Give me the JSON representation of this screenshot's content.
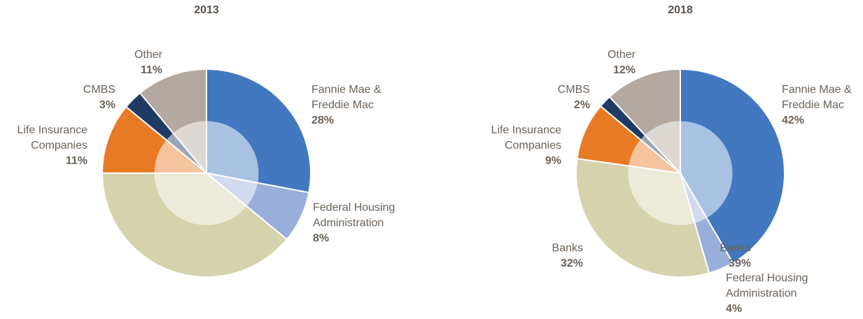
{
  "chart_data": [
    {
      "type": "pie",
      "title": "2013",
      "categories": [
        "Fannie Mae & Freddie Mac",
        "Federal Housing Administration",
        "Banks",
        "Life Insurance Companies",
        "CMBS",
        "Other"
      ],
      "values": [
        28,
        8,
        39,
        11,
        3,
        11
      ],
      "value_labels": [
        "28%",
        "8%",
        "39%",
        "11%",
        "3%",
        "11%"
      ],
      "colors": [
        "#4278bf",
        "#9aaedc",
        "#d4d3ac",
        "#e97a25",
        "#1f3b63",
        "#b3a9a0"
      ]
    },
    {
      "type": "pie",
      "title": "2018",
      "categories": [
        "Fannie Mae & Freddie Mac",
        "Federal Housing Administration",
        "Banks",
        "Life Insurance Companies",
        "CMBS",
        "Other"
      ],
      "values": [
        42,
        4,
        32,
        9,
        2,
        12
      ],
      "value_labels": [
        "42%",
        "4%",
        "32%",
        "9%",
        "2%",
        "12%"
      ],
      "colors": [
        "#4278bf",
        "#9aaedc",
        "#d4d3ac",
        "#e97a25",
        "#1f3b63",
        "#b3a9a0"
      ]
    }
  ]
}
